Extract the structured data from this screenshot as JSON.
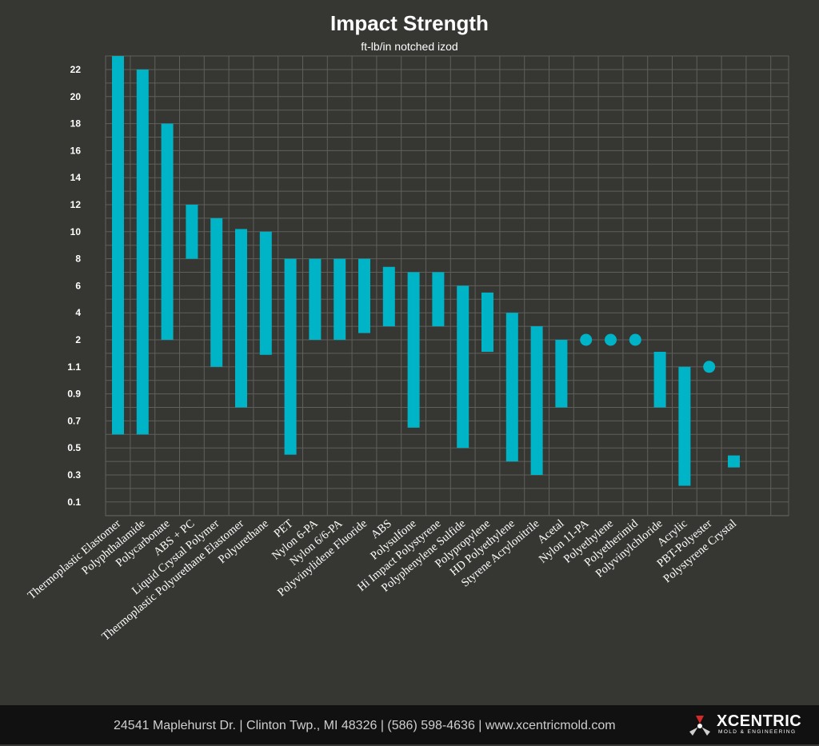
{
  "chart_data": {
    "type": "range-bar",
    "title": "Impact Strength",
    "subtitle": "ft-lb/in notched izod",
    "xlabel": "",
    "ylabel": "",
    "y_ticks": [
      "0.1",
      "0.3",
      "0.5",
      "0.7",
      "0.9",
      "1.1",
      "2",
      "4",
      "6",
      "8",
      "10",
      "12",
      "14",
      "16",
      "18",
      "20",
      "22"
    ],
    "grid": true,
    "series_color": "#00b4c8",
    "categories": [
      {
        "name": "Thermoplastic Elastomer",
        "kind": "bar",
        "low": 0.6,
        "high": 23
      },
      {
        "name": "Polyphthalamide",
        "kind": "bar",
        "low": 0.6,
        "high": 22
      },
      {
        "name": "Polycarbonate",
        "kind": "bar",
        "low": 2,
        "high": 18
      },
      {
        "name": "ABS + PC",
        "kind": "bar",
        "low": 8,
        "high": 12
      },
      {
        "name": "Liquid Crystal Polymer",
        "kind": "bar",
        "low": 1.1,
        "high": 11
      },
      {
        "name": "Thermoplastic Polyurethane Elastomer",
        "kind": "bar",
        "low": 0.8,
        "high": 10.2
      },
      {
        "name": "Polyurethane",
        "kind": "bar",
        "low": 1.5,
        "high": 10
      },
      {
        "name": "PET",
        "kind": "bar",
        "low": 0.45,
        "high": 8
      },
      {
        "name": "Nylon 6-PA",
        "kind": "bar",
        "low": 2,
        "high": 8
      },
      {
        "name": "Nylon 6/6-PA",
        "kind": "bar",
        "low": 2,
        "high": 8
      },
      {
        "name": "Polyvinylidene Fluoride",
        "kind": "bar",
        "low": 2.5,
        "high": 8
      },
      {
        "name": "ABS",
        "kind": "bar",
        "low": 3,
        "high": 7.4
      },
      {
        "name": "Polysulfone",
        "kind": "bar",
        "low": 0.65,
        "high": 7
      },
      {
        "name": "Hi Impact Polystyrene",
        "kind": "bar",
        "low": 3,
        "high": 7
      },
      {
        "name": "Polyphenylene Sulfide",
        "kind": "bar",
        "low": 0.5,
        "high": 6
      },
      {
        "name": "Polypropylene",
        "kind": "bar",
        "low": 1.6,
        "high": 5.5
      },
      {
        "name": "HD Polyethylene",
        "kind": "bar",
        "low": 0.4,
        "high": 4
      },
      {
        "name": "Styrene Acrylonitrile",
        "kind": "bar",
        "low": 0.3,
        "high": 3
      },
      {
        "name": "Acetal",
        "kind": "bar",
        "low": 0.8,
        "high": 2
      },
      {
        "name": "Nylon 11-PA",
        "kind": "point",
        "low": 2,
        "high": 2
      },
      {
        "name": "Polyethylene",
        "kind": "point",
        "low": 2,
        "high": 2
      },
      {
        "name": "Polyetherimid",
        "kind": "point",
        "low": 2,
        "high": 2
      },
      {
        "name": "Polyvinylchloride",
        "kind": "bar",
        "low": 0.8,
        "high": 1.6
      },
      {
        "name": "Acrylic",
        "kind": "bar",
        "low": 0.22,
        "high": 1.1
      },
      {
        "name": "PBT-Polyester",
        "kind": "point",
        "low": 1.1,
        "high": 1.1
      },
      {
        "name": "Polystyrene Crystal",
        "kind": "square",
        "low": 0.4,
        "high": 0.4
      }
    ]
  },
  "footer": {
    "address": "24541 Maplehurst Dr.  |  Clinton Twp., MI 48326  |  (586) 598-4636  |  www.xcentricmold.com",
    "logo_name": "XCENTRIC",
    "logo_tagline": "MOLD & ENGINEERING",
    "logo_icon": "xcentric-logo-icon"
  }
}
